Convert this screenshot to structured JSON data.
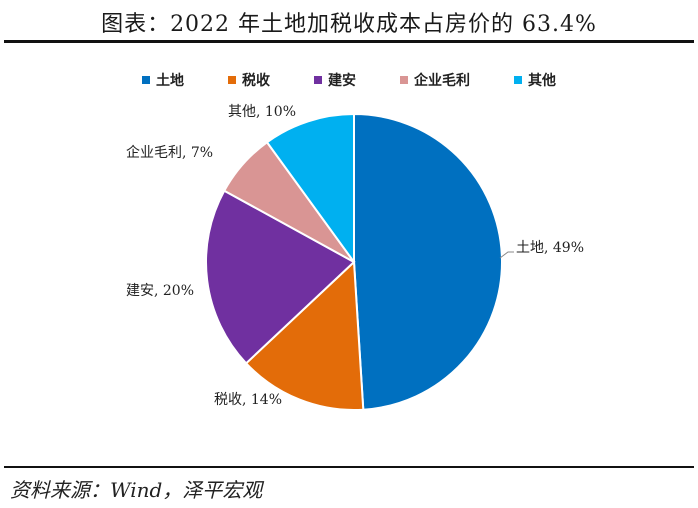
{
  "title": "图表：2022 年土地加税收成本占房价的 63.4%",
  "source": "资料来源：Wind，泽平宏观",
  "colors": {
    "土地": "#0070C0",
    "税收": "#E36C09",
    "建安": "#7030A0",
    "企业毛利": "#D99594",
    "其他": "#00B0F0"
  },
  "chart_data": {
    "type": "pie",
    "categories": [
      "土地",
      "税收",
      "建安",
      "企业毛利",
      "其他"
    ],
    "values": [
      49,
      14,
      20,
      7,
      10
    ],
    "data_labels": [
      "土地, 49%",
      "税收, 14%",
      "建安, 20%",
      "企业毛利, 7%",
      "其他, 10%"
    ],
    "legend": [
      "土地",
      "税收",
      "建安",
      "企业毛利",
      "其他"
    ],
    "legend_position": "top",
    "title": "图表：2022 年土地加税收成本占房价的 63.4%"
  }
}
